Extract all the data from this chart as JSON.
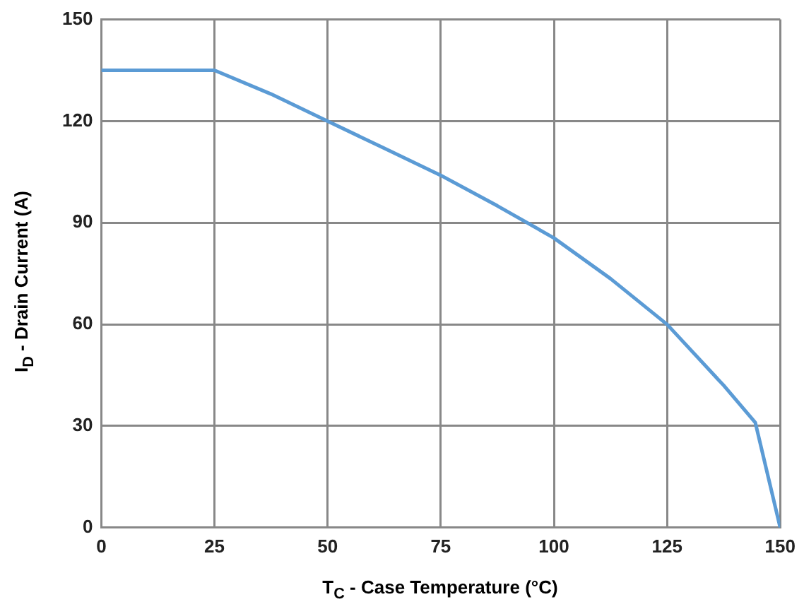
{
  "chart_data": {
    "type": "line",
    "xlabel": "T$_{C}$ - Case Temperature (°C)",
    "ylabel": "I$_{D}$ - Drain Current (A)",
    "x": [
      0,
      25,
      37.5,
      50,
      62.5,
      75,
      87.5,
      100,
      112.5,
      125,
      137.5,
      144.5,
      150
    ],
    "series": [
      {
        "color": "#5b9bd5",
        "values": [
          135,
          135,
          128,
          120,
          112,
          104,
          95,
          85.5,
          73.5,
          60,
          42,
          31,
          0
        ]
      }
    ],
    "xlim": [
      0,
      150
    ],
    "xticks": [
      0,
      25,
      50,
      75,
      100,
      125,
      150
    ],
    "ylim": [
      0,
      150
    ],
    "yticks": [
      0,
      30,
      60,
      90,
      120,
      150
    ],
    "grid": true,
    "legend": false,
    "marker": "none",
    "line_style": "solid"
  }
}
